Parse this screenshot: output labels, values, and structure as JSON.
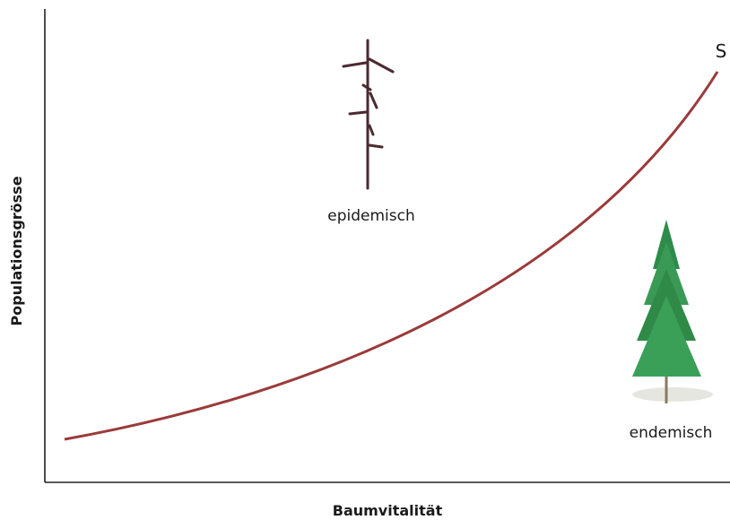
{
  "diagram": {
    "x_axis_label": "Baumvitalität",
    "y_axis_label": "Populationsgrösse",
    "curve_label": "S",
    "labels": [
      "epidemisch",
      "endemisch"
    ]
  }
}
